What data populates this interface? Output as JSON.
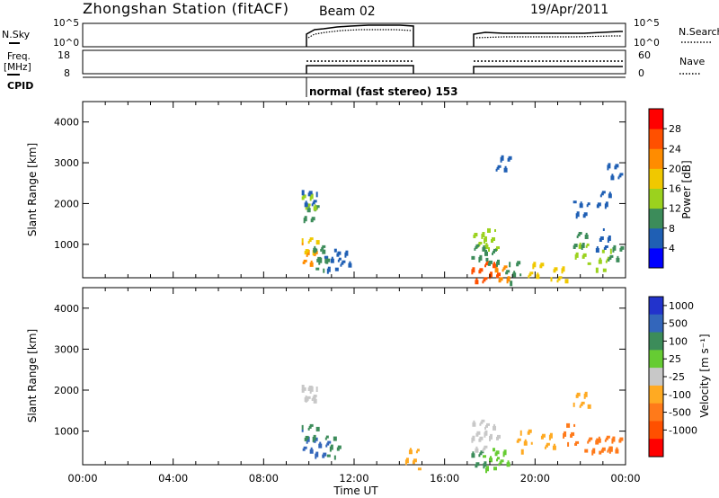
{
  "header": {
    "station": "Zhongshan Station (fitACF)",
    "beam": "Beam 02",
    "date": "19/Apr/2011"
  },
  "panel_labels": {
    "nsky": "N.Sky",
    "nsky_hi": "10^5",
    "nsky_lo": "10^0",
    "nsearch": "N.Search",
    "nsearch_hi": "10^5",
    "nsearch_lo": "10^0",
    "freq": "Freq.",
    "freq_unit": "[MHz]",
    "freq_hi": "18",
    "freq_lo": "8",
    "nave": "Nave",
    "nave_hi": "60",
    "nave_lo": "0",
    "cpid": "CPID",
    "cpid_text": "normal (fast stereo) 153"
  },
  "time_axis": {
    "label": "Time UT",
    "ticks": [
      "00:00",
      "04:00",
      "08:00",
      "12:00",
      "16:00",
      "20:00",
      "00:00"
    ]
  },
  "range_axis": {
    "label": "Slant Range [km]",
    "ticks": [
      "1000",
      "2000",
      "3000",
      "4000"
    ]
  },
  "power_bar": {
    "label": "Power [dB]",
    "ticks": [
      "4",
      "8",
      "12",
      "16",
      "20",
      "24",
      "28"
    ],
    "colors": [
      "#0000ff",
      "#1f5fb4",
      "#3c8c5a",
      "#9bd21e",
      "#f0c800",
      "#ff8c00",
      "#ff5000",
      "#ff0000"
    ]
  },
  "velocity_bar": {
    "label": "Velocity [m s⁻¹]",
    "ticks": [
      "1000",
      "500",
      "100",
      "25",
      "-25",
      "-100",
      "-500",
      "-1000"
    ],
    "colors": [
      "#2233cc",
      "#3366bb",
      "#3c8c5a",
      "#66cc33",
      "#c8c8c8",
      "#ffaa22",
      "#ff7a1a",
      "#ff5000",
      "#ff0000"
    ]
  },
  "chart_data": {
    "type": "heatmap",
    "title": "Zhongshan Station (fitACF)",
    "xlabel": "Time UT",
    "ylabel": "Slant Range [km]",
    "xlim": [
      0,
      24
    ],
    "ylim": [
      180,
      4500
    ],
    "data_intervals_ut_hours": [
      [
        10.0,
        14.7
      ],
      [
        17.5,
        24.0
      ]
    ],
    "range_gates_km": [
      350,
      650,
      800,
      950,
      1150,
      1300,
      1850,
      2000,
      2200,
      2750,
      3050
    ],
    "power_db": {
      "times_ut_hours": [
        10.0,
        10.5,
        11.0,
        11.5,
        12.0,
        13.0,
        14.0,
        14.5,
        17.5,
        18.0,
        18.5,
        19.0,
        19.5,
        20.0,
        21.0,
        22.0,
        23.0,
        23.5
      ],
      "cells": [
        [
          10.0,
          800,
          20
        ],
        [
          10.0,
          950,
          16
        ],
        [
          10.0,
          1850,
          8
        ],
        [
          10.0,
          2000,
          12
        ],
        [
          10.0,
          2200,
          6
        ],
        [
          10.5,
          650,
          8
        ],
        [
          10.5,
          800,
          10
        ],
        [
          11.0,
          650,
          6
        ],
        [
          11.5,
          650,
          6
        ],
        [
          17.5,
          350,
          24
        ],
        [
          18.0,
          350,
          26
        ],
        [
          18.5,
          350,
          22
        ],
        [
          19.0,
          350,
          8
        ],
        [
          17.5,
          1150,
          12
        ],
        [
          18.0,
          1150,
          14
        ],
        [
          17.5,
          800,
          8
        ],
        [
          18.0,
          800,
          10
        ],
        [
          20.0,
          350,
          16
        ],
        [
          21.0,
          350,
          16
        ],
        [
          22.0,
          800,
          12
        ],
        [
          22.0,
          1150,
          8
        ],
        [
          23.0,
          650,
          12
        ],
        [
          23.5,
          800,
          10
        ],
        [
          23.0,
          1150,
          6
        ],
        [
          22.0,
          1850,
          6
        ],
        [
          23.0,
          2200,
          4
        ],
        [
          23.5,
          2750,
          4
        ],
        [
          18.5,
          3050,
          4
        ]
      ]
    },
    "velocity_ms": {
      "times_ut_hours": [
        10.0,
        10.5,
        11.0,
        12.0,
        14.5,
        17.5,
        18.0,
        18.5,
        19.5,
        20.5,
        21.5,
        22.5,
        23.0,
        23.5
      ],
      "cells": [
        [
          10.0,
          800,
          500
        ],
        [
          10.0,
          950,
          300
        ],
        [
          10.5,
          650,
          500
        ],
        [
          10.0,
          1850,
          0
        ],
        [
          10.0,
          2000,
          0
        ],
        [
          11.0,
          650,
          300
        ],
        [
          17.5,
          350,
          100
        ],
        [
          18.0,
          350,
          50
        ],
        [
          18.5,
          350,
          50
        ],
        [
          17.5,
          800,
          0
        ],
        [
          18.0,
          950,
          0
        ],
        [
          17.5,
          1150,
          0
        ],
        [
          19.5,
          800,
          -100
        ],
        [
          20.5,
          800,
          -100
        ],
        [
          21.5,
          950,
          -200
        ],
        [
          22.5,
          650,
          -300
        ],
        [
          23.0,
          800,
          -300
        ],
        [
          23.5,
          650,
          -200
        ],
        [
          22.0,
          1850,
          -50
        ],
        [
          14.5,
          350,
          -100
        ]
      ]
    }
  }
}
